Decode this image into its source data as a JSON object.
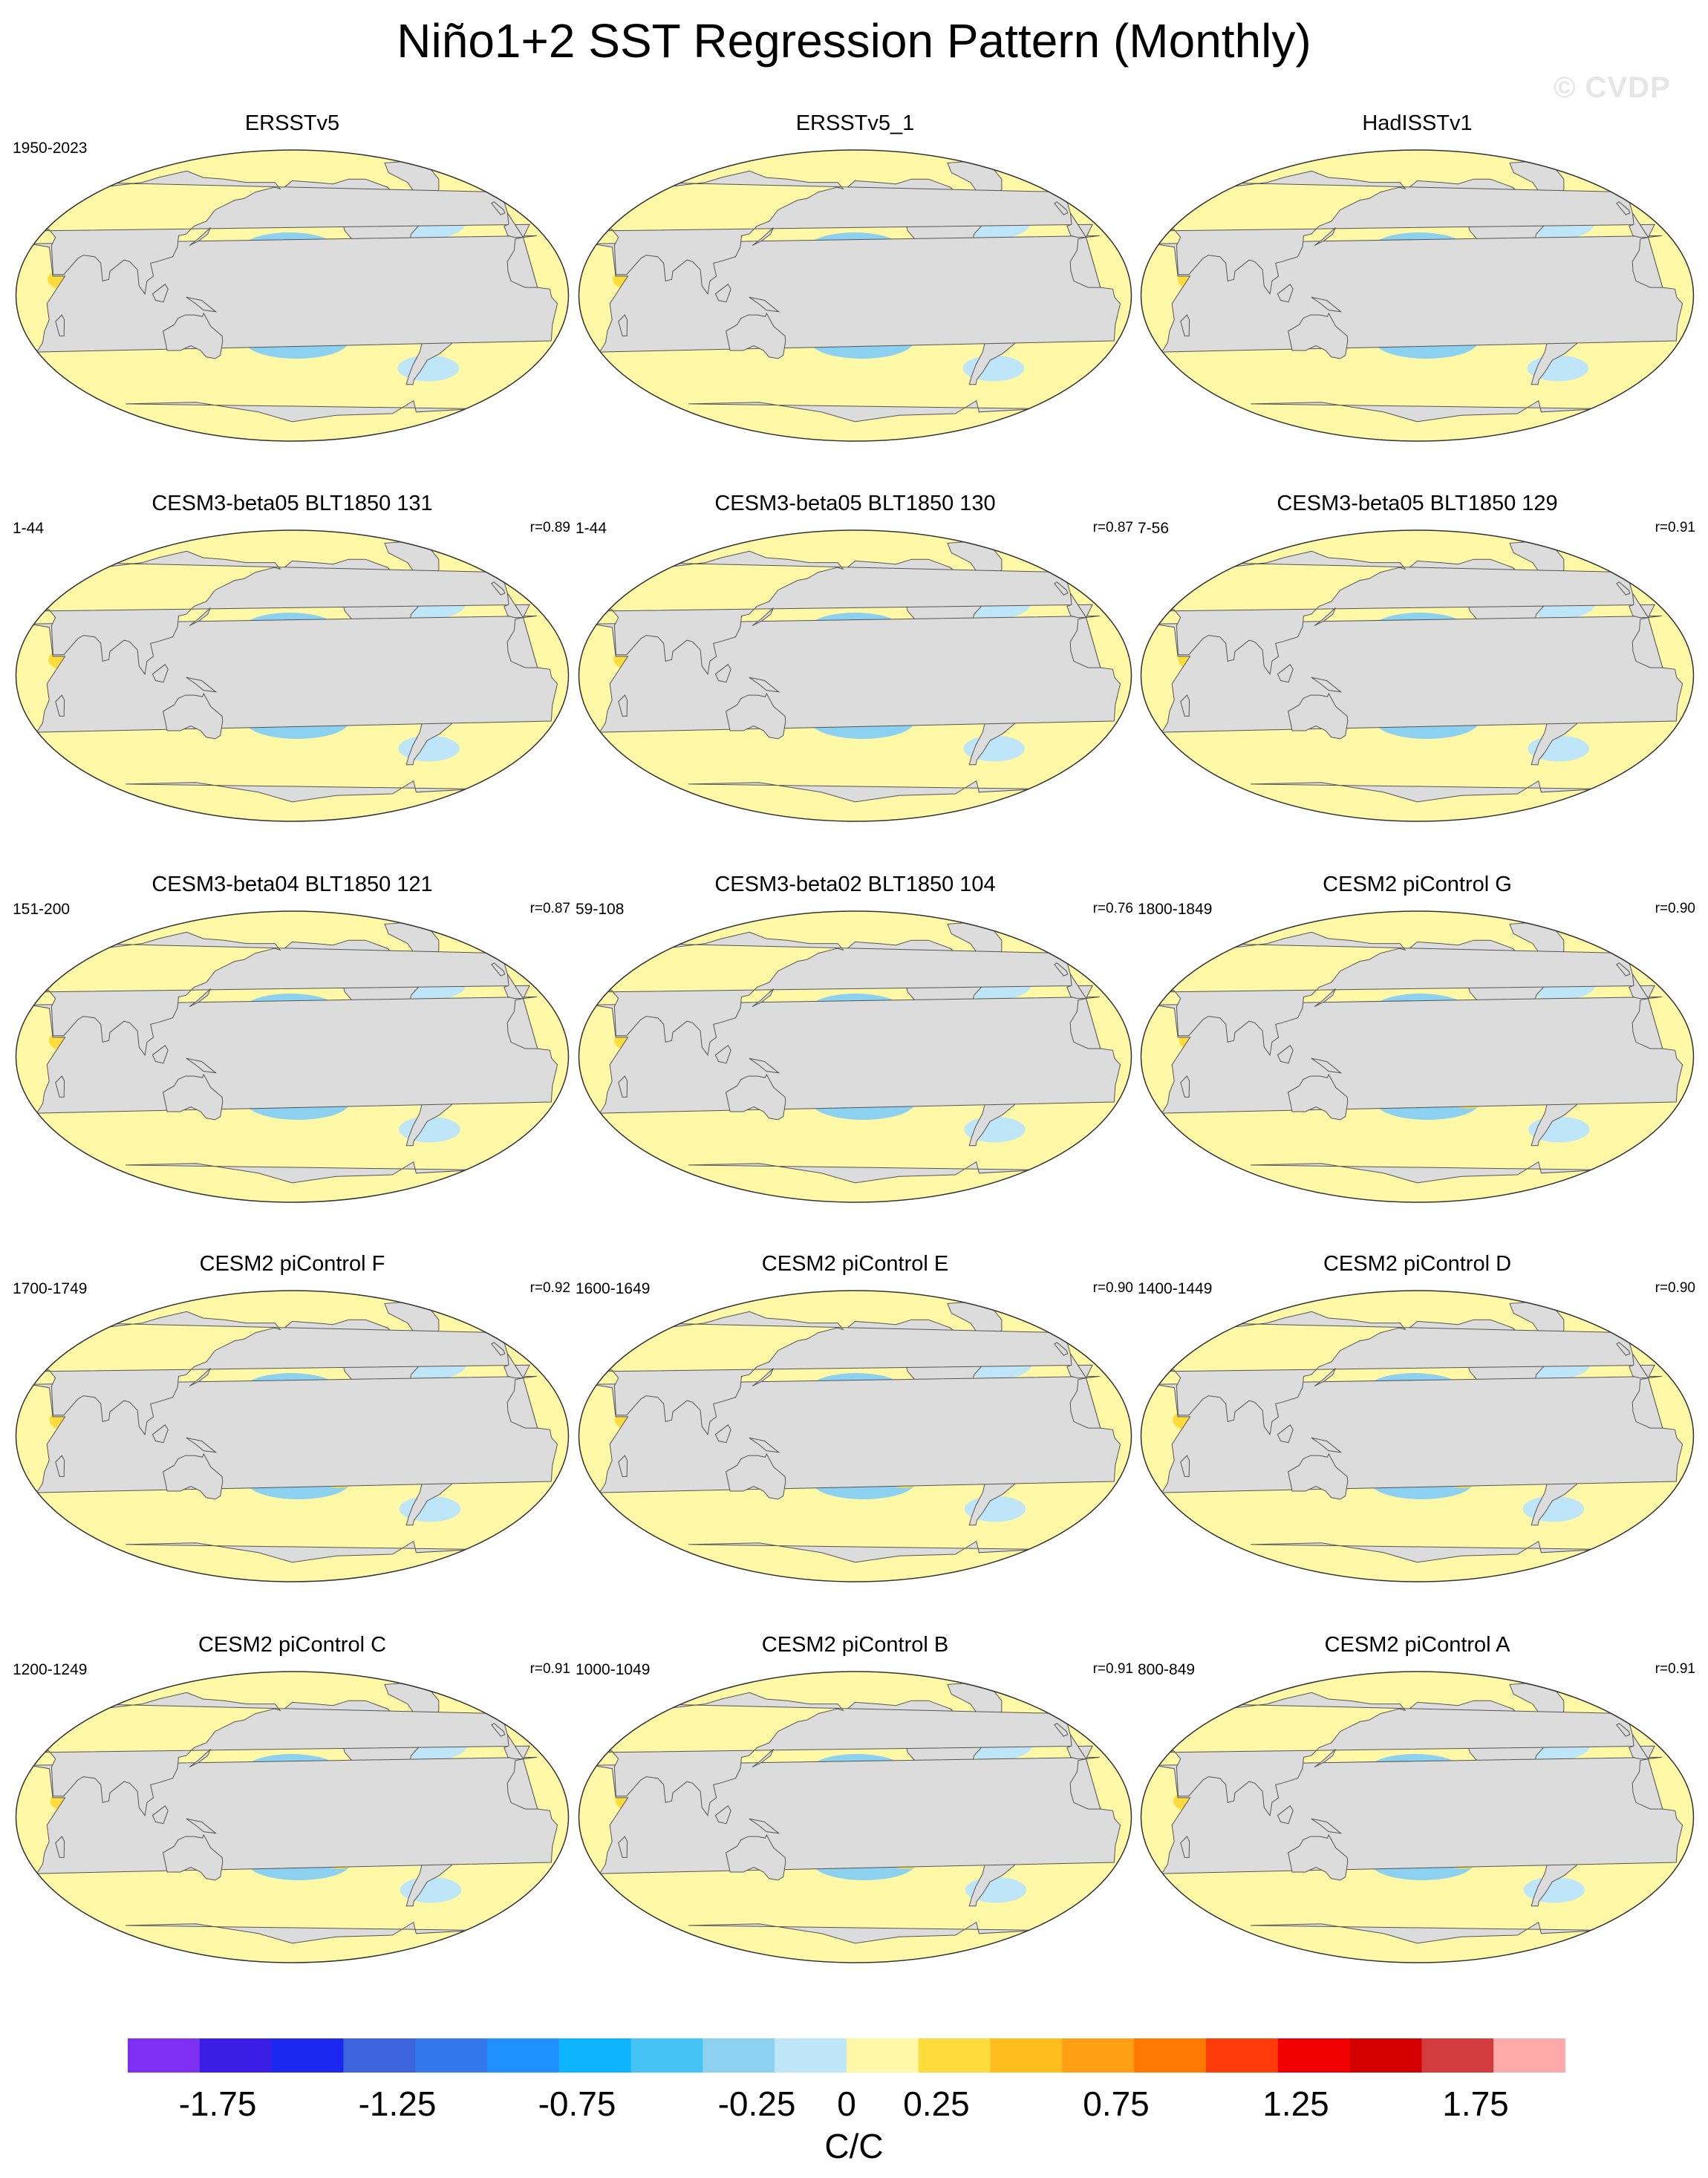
{
  "title": "Niño1+2 SST Regression Pattern (Monthly)",
  "watermark": "© CVDP",
  "chart_data": {
    "type": "heatmap",
    "projection": "Robinson (global, Pacific-centered)",
    "variable": "SST regression onto Niño1+2 index",
    "units": "C/C",
    "panels": [
      {
        "title": "ERSSTv5",
        "period": "1950-2023",
        "pattern_correlation": ""
      },
      {
        "title": "ERSSTv5_1",
        "period": "",
        "pattern_correlation": ""
      },
      {
        "title": "HadISSTv1",
        "period": "",
        "pattern_correlation": ""
      },
      {
        "title": "CESM3-beta05 BLT1850 131",
        "period": "1-44",
        "pattern_correlation": "r=0.89"
      },
      {
        "title": "CESM3-beta05 BLT1850 130",
        "period": "1-44",
        "pattern_correlation": "r=0.87"
      },
      {
        "title": "CESM3-beta05 BLT1850 129",
        "period": "7-56",
        "pattern_correlation": "r=0.91"
      },
      {
        "title": "CESM3-beta04 BLT1850 121",
        "period": "151-200",
        "pattern_correlation": "r=0.87"
      },
      {
        "title": "CESM3-beta02 BLT1850 104",
        "period": "59-108",
        "pattern_correlation": "r=0.76"
      },
      {
        "title": "CESM2 piControl G",
        "period": "1800-1849",
        "pattern_correlation": "r=0.90"
      },
      {
        "title": "CESM2 piControl F",
        "period": "1700-1749",
        "pattern_correlation": "r=0.92"
      },
      {
        "title": "CESM2 piControl E",
        "period": "1600-1649",
        "pattern_correlation": "r=0.90"
      },
      {
        "title": "CESM2 piControl D",
        "period": "1400-1449",
        "pattern_correlation": "r=0.90"
      },
      {
        "title": "CESM2 piControl C",
        "period": "1200-1249",
        "pattern_correlation": "r=0.91"
      },
      {
        "title": "CESM2 piControl B",
        "period": "1000-1049",
        "pattern_correlation": "r=0.91"
      },
      {
        "title": "CESM2 piControl A",
        "period": "800-849",
        "pattern_correlation": "r=0.91"
      }
    ],
    "colorbar": {
      "range": [
        -2.0,
        2.0
      ],
      "interval": 0.2,
      "colors": [
        "#7f2ff0",
        "#3a1ee6",
        "#1c28f0",
        "#3c64dc",
        "#3278ec",
        "#1e90ff",
        "#0fb4ff",
        "#46c3f5",
        "#8cd2f0",
        "#bee6f8",
        "#fff8a6",
        "#ffdc3c",
        "#ffbe1e",
        "#ffa014",
        "#ff7800",
        "#ff3c0a",
        "#f00000",
        "#d20000",
        "#d23c3c",
        "#ffaaaa"
      ],
      "tick_labels": [
        "-1.75",
        "-1.25",
        "-0.75",
        "-0.25",
        "0",
        "0.25",
        "0.75",
        "1.25",
        "1.75"
      ],
      "tick_values": [
        -1.75,
        -1.25,
        -0.75,
        -0.25,
        0,
        0.25,
        0.75,
        1.25,
        1.75
      ]
    }
  }
}
